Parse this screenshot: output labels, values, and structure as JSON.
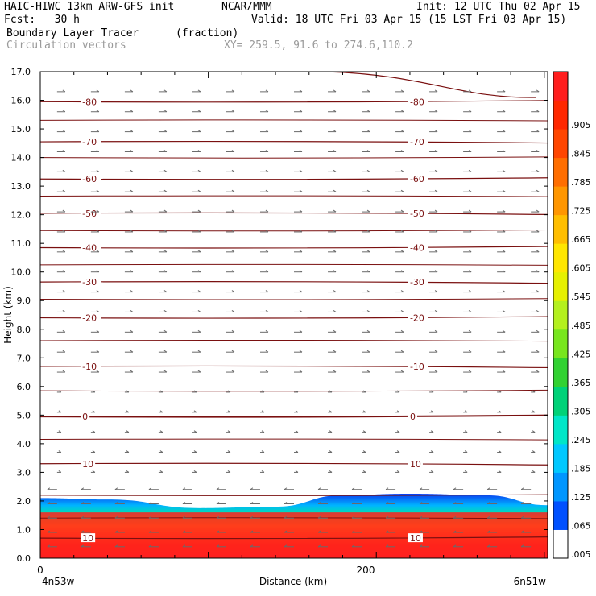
{
  "header": {
    "model": "HAIC-HIWC 13km ARW-GFS init",
    "org": "NCAR/MMM",
    "init": "Init: 12 UTC Thu 02 Apr 15",
    "fcst": "Fcst:   30 h",
    "valid": "Valid: 18 UTC Fri 03 Apr 15 (15 LST Fri 03 Apr 15)",
    "field": "Boundary Layer Tracer",
    "units": "(fraction)",
    "overlay": "Circulation vectors",
    "xy": "XY= 259.5, 91.6 to 274.6,110.2"
  },
  "chart_data": {
    "type": "heatmap",
    "title": "Boundary Layer Tracer",
    "units": "(fraction)",
    "ylabel": "Height (km)",
    "xlabel": "Distance (km)",
    "x_left_label": "4n53w",
    "x_right_label": "6n51w",
    "ylim": [
      0,
      17
    ],
    "xlim": [
      0,
      302
    ],
    "y_ticks": [
      "0.0",
      "1.0",
      "2.0",
      "3.0",
      "4.0",
      "5.0",
      "6.0",
      "7.0",
      "8.0",
      "9.0",
      "10.0",
      "11.0",
      "12.0",
      "13.0",
      "14.0",
      "15.0",
      "16.0",
      "17.0"
    ],
    "x_ticks": [
      {
        "value": 0,
        "label": "0"
      },
      {
        "value": 200,
        "label": "200"
      }
    ],
    "colorbar_labels": [
      ".005",
      ".065",
      ".125",
      ".185",
      ".245",
      ".305",
      ".365",
      ".425",
      ".485",
      ".545",
      ".605",
      ".665",
      ".725",
      ".785",
      ".845",
      ".905",
      "—"
    ],
    "colorbar_colors": [
      "#ffffff",
      "#0050ff",
      "#0096ff",
      "#00c8ff",
      "#00e6c8",
      "#00d278",
      "#32d232",
      "#78e61e",
      "#b4f01e",
      "#e6f000",
      "#ffe600",
      "#ffbe00",
      "#ff9600",
      "#ff6e00",
      "#ff4600",
      "#ff2800",
      "#ff1e1e"
    ],
    "contours": [
      {
        "label": "-80",
        "y": 15.95
      },
      {
        "label": "-70",
        "y": 14.55
      },
      {
        "label": "-60",
        "y": 13.25
      },
      {
        "label": "-50",
        "y": 12.05
      },
      {
        "label": "-40",
        "y": 10.85
      },
      {
        "label": "-30",
        "y": 9.65
      },
      {
        "label": "-20",
        "y": 8.4
      },
      {
        "label": "-10",
        "y": 6.7
      },
      {
        "label": "0",
        "y": 4.95
      },
      {
        "label": "10",
        "y": 3.3
      },
      {
        "label": "10",
        "y": 0.7
      }
    ],
    "unlabeled_contours": [
      15.3,
      14.0,
      12.65,
      11.45,
      10.25,
      9.05,
      7.6,
      5.85,
      4.15,
      2.2,
      1.4
    ],
    "upper_contour": {
      "left_y": 17.0,
      "peak_x": 295,
      "peak_y": 16.1
    },
    "tracer_layer": {
      "base_top_y": 1.6,
      "wave_top": [
        2.1,
        2.05,
        1.75,
        1.8,
        2.2,
        2.25,
        2.2,
        1.85
      ],
      "wave_x": [
        0,
        40,
        95,
        140,
        180,
        220,
        265,
        302
      ]
    },
    "vector_rows": [
      16.3,
      15.6,
      14.9,
      14.2,
      13.5,
      12.8,
      12.1,
      11.4,
      10.7,
      10.0,
      9.3,
      8.6,
      7.9,
      7.2,
      6.5,
      5.8,
      5.1,
      4.4,
      3.7,
      3.0,
      2.4,
      1.9,
      1.4,
      0.9,
      0.4
    ],
    "vector_cols": 15
  }
}
